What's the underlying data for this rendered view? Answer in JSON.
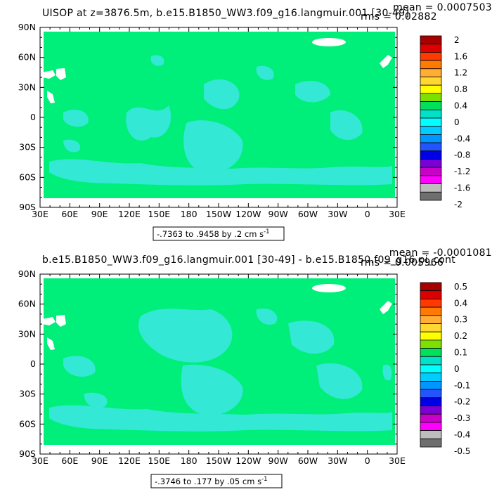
{
  "chart_data": [
    {
      "type": "heatmap",
      "title": "UISOP at z=3876.5m, b.e15.B1850_WW3.f09_g16.langmuir.001 [30-49]",
      "mean_label": "mean = 0.0007503",
      "rms_label": "rms = 0.02882",
      "range_label": "-.7363 to .9458 by .2 cm s",
      "range_unit_sup": "-1",
      "x_ticks": [
        "30E",
        "60E",
        "90E",
        "120E",
        "150E",
        "180",
        "150W",
        "120W",
        "90W",
        "60W",
        "30W",
        "0",
        "30E"
      ],
      "y_ticks": [
        "90N",
        "60N",
        "30N",
        "0",
        "30S",
        "60S",
        "90S"
      ],
      "xlim": [
        30,
        390
      ],
      "ylim": [
        -90,
        90
      ],
      "colorbar": {
        "labels": [
          "2",
          "1.6",
          "1.2",
          "0.8",
          "0.4",
          "0",
          "-0.4",
          "-0.8",
          "-1.2",
          "-1.6",
          "-2"
        ],
        "colors": [
          "#a60000",
          "#dd0000",
          "#ff3a00",
          "#ff7a00",
          "#ffad33",
          "#ffd733",
          "#ffff00",
          "#7fe000",
          "#00e05a",
          "#00e1c8",
          "#00ffff",
          "#00ccff",
          "#0096ff",
          "#2255ff",
          "#0000e6",
          "#7a00d6",
          "#c800c8",
          "#ff00ff",
          "#bdbdbd",
          "#6e6e6e"
        ]
      },
      "field_color": "#00ee7a",
      "secondary_color": "#33e8d4",
      "land_color": "#ffffff"
    },
    {
      "type": "heatmap",
      "title": "b.e15.B1850_WW3.f09_g16.langmuir.001 [30-49] - b.e15.B1850.f09_g16.pi_cont",
      "mean_label": "mean = -0.0001081",
      "rms_label": "rms = 0.005966",
      "range_label": "-.3746 to .177 by .05 cm s",
      "range_unit_sup": "-1",
      "x_ticks": [
        "30E",
        "60E",
        "90E",
        "120E",
        "150E",
        "180",
        "150W",
        "120W",
        "90W",
        "60W",
        "30W",
        "0",
        "30E"
      ],
      "y_ticks": [
        "90N",
        "60N",
        "30N",
        "0",
        "30S",
        "60S",
        "90S"
      ],
      "xlim": [
        30,
        390
      ],
      "ylim": [
        -90,
        90
      ],
      "colorbar": {
        "labels": [
          "0.5",
          "0.4",
          "0.3",
          "0.2",
          "0.1",
          "0",
          "-0.1",
          "-0.2",
          "-0.3",
          "-0.4",
          "-0.5"
        ],
        "colors": [
          "#a60000",
          "#dd0000",
          "#ff3a00",
          "#ff7a00",
          "#ffad33",
          "#ffd733",
          "#ffff00",
          "#7fe000",
          "#00e05a",
          "#00e1c8",
          "#00ffff",
          "#00ccff",
          "#0096ff",
          "#2255ff",
          "#0000e6",
          "#7a00d6",
          "#c800c8",
          "#ff00ff",
          "#bdbdbd",
          "#6e6e6e"
        ]
      },
      "field_color": "#00ee7a",
      "secondary_color": "#33e8d4",
      "land_color": "#ffffff"
    }
  ]
}
